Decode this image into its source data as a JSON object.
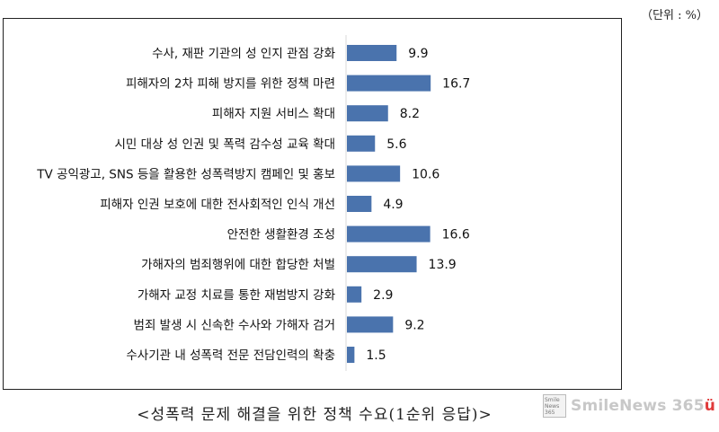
{
  "unit_label": "（단위 : %）",
  "caption": "<성폭력 문제 해결을 위한 정책 수요(1순위 응답)>",
  "logo": {
    "box_lines": [
      "Smile",
      "News",
      "365"
    ],
    "name": "SmileNews 365",
    "accent_glyph": "ü"
  },
  "colors": {
    "bar": "#4a73ad",
    "frame": "#222222"
  },
  "chart_data": {
    "type": "bar",
    "orientation": "horizontal",
    "categories": [
      "수사, 재판 기관의 성 인지 관점 강화",
      "피해자의 2차 피해 방지를 위한 정책 마련",
      "피해자 지원 서비스 확대",
      "시민 대상 성 인권 및 폭력 감수성 교육 확대",
      "TV 공익광고, SNS 등을 활용한 성폭력방지 캠페인 및 홍보",
      "피해자 인권 보호에 대한 전사회적인 인식 개선",
      "안전한 생활환경 조성",
      "가해자의 범죄행위에 대한 합당한 처벌",
      "가해자 교정 치료를 통한 재범방지 강화",
      "범죄 발생 시 신속한 수사와 가해자 검거",
      "수사기관 내 성폭력 전문 전담인력의 확충"
    ],
    "values": [
      9.9,
      16.7,
      8.2,
      5.6,
      10.6,
      4.9,
      16.6,
      13.9,
      2.9,
      9.2,
      1.5
    ],
    "value_labels": [
      "9.9",
      "16.7",
      "8.2",
      "5.6",
      "10.6",
      "4.9",
      "16.6",
      "13.9",
      "2.9",
      "9.2",
      "1.5"
    ],
    "unit": "%",
    "xlim": [
      0,
      20
    ],
    "grid": false,
    "legend": "none"
  }
}
